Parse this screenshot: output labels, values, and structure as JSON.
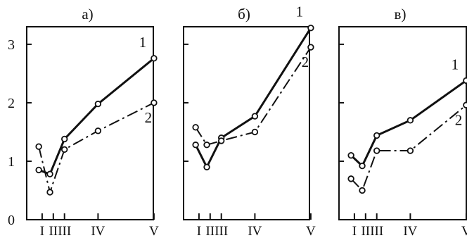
{
  "chart_data": [
    {
      "type": "line",
      "title": "а)",
      "categories": [
        "I",
        "II",
        "III",
        "IV",
        "V"
      ],
      "x": [
        0.5,
        1,
        1.5,
        3,
        5.5
      ],
      "ylim": [
        0,
        3.3
      ],
      "yticks": [
        0,
        1,
        2,
        3
      ],
      "series": [
        {
          "name": "1",
          "x": [
            0.35,
            0.85,
            1.5,
            3.0,
            5.5
          ],
          "values": [
            0.85,
            0.78,
            1.38,
            1.98,
            2.76
          ]
        },
        {
          "name": "2",
          "x": [
            0.35,
            0.85,
            1.5,
            3.0,
            5.5
          ],
          "values": [
            1.25,
            0.47,
            1.2,
            1.52,
            2.0
          ]
        }
      ]
    },
    {
      "type": "line",
      "title": "б)",
      "categories": [
        "I",
        "II",
        "III",
        "IV",
        "V"
      ],
      "x": [
        0.5,
        1,
        1.5,
        3,
        5.5
      ],
      "ylim": [
        0,
        3.3
      ],
      "yticks": [
        0,
        1,
        2,
        3
      ],
      "series": [
        {
          "name": "1",
          "x": [
            0.35,
            0.85,
            1.5,
            3.0,
            5.5
          ],
          "values": [
            1.28,
            0.9,
            1.4,
            1.77,
            3.28
          ]
        },
        {
          "name": "2",
          "x": [
            0.35,
            0.85,
            1.5,
            3.0,
            5.5
          ],
          "values": [
            1.58,
            1.28,
            1.35,
            1.5,
            2.95
          ]
        }
      ]
    },
    {
      "type": "line",
      "title": "в)",
      "categories": [
        "I",
        "II",
        "III",
        "IV",
        "V"
      ],
      "x": [
        0.5,
        1,
        1.5,
        3,
        5.5
      ],
      "ylim": [
        0,
        3.3
      ],
      "yticks": [
        0,
        1,
        2,
        3
      ],
      "series": [
        {
          "name": "1",
          "x": [
            0.35,
            0.85,
            1.5,
            3.0,
            5.5
          ],
          "values": [
            1.1,
            0.92,
            1.44,
            1.7,
            2.38
          ]
        },
        {
          "name": "2",
          "x": [
            0.35,
            0.85,
            1.5,
            3.0,
            5.5
          ],
          "values": [
            0.7,
            0.5,
            1.18,
            1.18,
            1.96
          ]
        }
      ]
    }
  ]
}
